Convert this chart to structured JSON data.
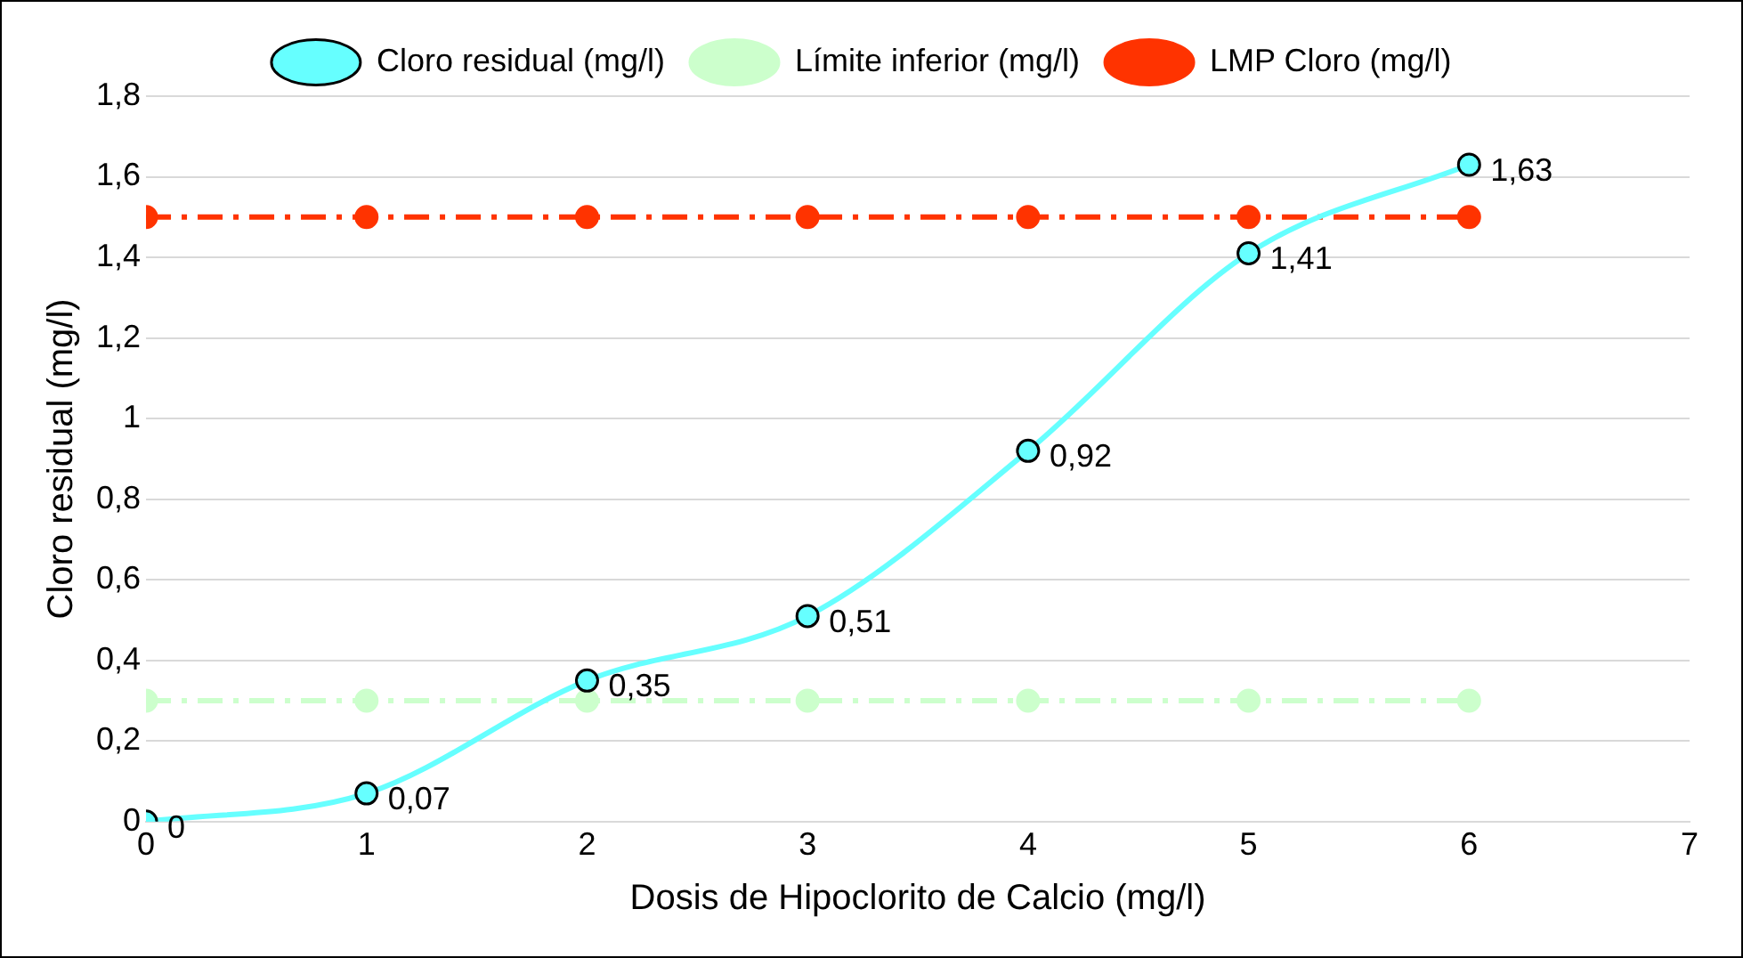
{
  "chart_data": {
    "type": "line",
    "xlabel": "Dosis de Hipoclorito de Calcio (mg/l)",
    "ylabel": "Cloro residual (mg/l)",
    "x": [
      0,
      1,
      2,
      3,
      4,
      5,
      6
    ],
    "xlim": [
      0,
      7
    ],
    "xticks": [
      0,
      1,
      2,
      3,
      4,
      5,
      6,
      7
    ],
    "ylim": [
      0,
      1.8
    ],
    "yticks": [
      0,
      {
        "value": 0.2,
        "label": "0,2"
      },
      {
        "value": 0.4,
        "label": "0,4"
      },
      {
        "value": 0.6,
        "label": "0,6"
      },
      {
        "value": 0.8,
        "label": "0,8"
      },
      1,
      {
        "value": 1.2,
        "label": "1,2"
      },
      {
        "value": 1.4,
        "label": "1,4"
      },
      {
        "value": 1.6,
        "label": "1,6"
      },
      {
        "value": 1.8,
        "label": "1,8"
      }
    ],
    "grid": "y",
    "legend": "top",
    "marker": "circle",
    "series": [
      {
        "name": "Cloro residual (mg/l)",
        "color": "#66ffff",
        "line_style": "solid",
        "values": [
          0,
          0.07,
          0.35,
          0.51,
          0.92,
          1.41,
          1.63
        ],
        "value_labels": [
          "0",
          "0,07",
          "0,35",
          "0,51",
          "0,92",
          "1,41",
          "1,63"
        ]
      },
      {
        "name": "Límite inferior (mg/l)",
        "color": "#ccffcc",
        "line_style": "dashed",
        "values": [
          0.3,
          0.3,
          0.3,
          0.3,
          0.3,
          0.3,
          0.3
        ]
      },
      {
        "name": "LMP Cloro (mg/l)",
        "color": "#ff3300",
        "line_style": "dashed",
        "values": [
          1.5,
          1.5,
          1.5,
          1.5,
          1.5,
          1.5,
          1.5
        ]
      }
    ]
  }
}
